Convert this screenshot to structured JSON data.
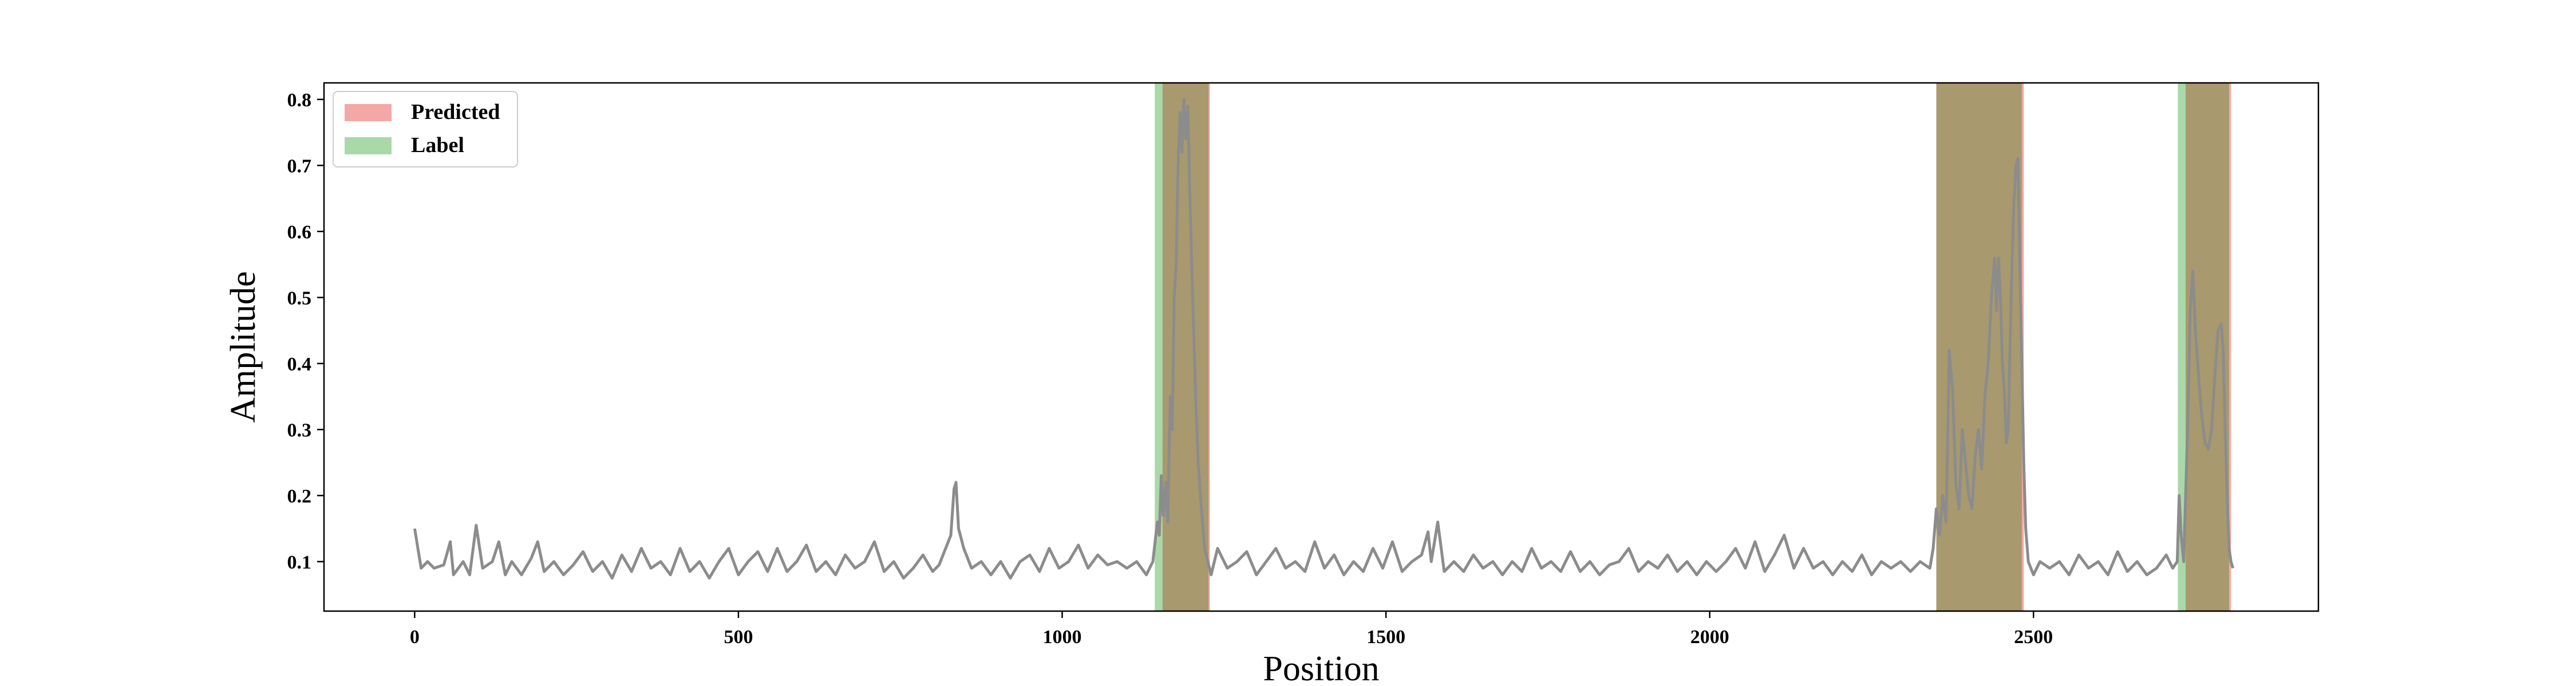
{
  "chart_data": {
    "type": "line",
    "title": "",
    "xlabel": "Position",
    "ylabel": "Amplitude",
    "xlim": [
      -140,
      2940
    ],
    "ylim": [
      0.025,
      0.825
    ],
    "x_ticks": [
      0,
      500,
      1000,
      1500,
      2000,
      2500
    ],
    "y_ticks": [
      0.1,
      0.2,
      0.3,
      0.4,
      0.5,
      0.6,
      0.7,
      0.8
    ],
    "grid": false,
    "legend": {
      "placement": "top-left",
      "entries": [
        {
          "label": "Predicted",
          "color": "#f4a7a7"
        },
        {
          "label": "Label",
          "color": "#a9d8a9"
        }
      ]
    },
    "series": [
      {
        "color": "#8c8c8c",
        "points": [
          [
            0,
            0.15
          ],
          [
            5,
            0.12
          ],
          [
            10,
            0.09
          ],
          [
            20,
            0.1
          ],
          [
            30,
            0.09
          ],
          [
            45,
            0.095
          ],
          [
            55,
            0.13
          ],
          [
            60,
            0.08
          ],
          [
            75,
            0.1
          ],
          [
            85,
            0.08
          ],
          [
            95,
            0.155
          ],
          [
            105,
            0.09
          ],
          [
            120,
            0.1
          ],
          [
            130,
            0.13
          ],
          [
            140,
            0.08
          ],
          [
            150,
            0.1
          ],
          [
            165,
            0.08
          ],
          [
            180,
            0.105
          ],
          [
            190,
            0.13
          ],
          [
            200,
            0.085
          ],
          [
            215,
            0.1
          ],
          [
            230,
            0.08
          ],
          [
            245,
            0.095
          ],
          [
            260,
            0.115
          ],
          [
            275,
            0.085
          ],
          [
            290,
            0.1
          ],
          [
            305,
            0.075
          ],
          [
            320,
            0.11
          ],
          [
            335,
            0.085
          ],
          [
            350,
            0.12
          ],
          [
            365,
            0.09
          ],
          [
            380,
            0.1
          ],
          [
            395,
            0.08
          ],
          [
            410,
            0.12
          ],
          [
            425,
            0.085
          ],
          [
            440,
            0.1
          ],
          [
            455,
            0.075
          ],
          [
            470,
            0.1
          ],
          [
            485,
            0.12
          ],
          [
            500,
            0.08
          ],
          [
            515,
            0.1
          ],
          [
            530,
            0.115
          ],
          [
            545,
            0.085
          ],
          [
            560,
            0.12
          ],
          [
            575,
            0.085
          ],
          [
            590,
            0.1
          ],
          [
            605,
            0.125
          ],
          [
            620,
            0.085
          ],
          [
            635,
            0.1
          ],
          [
            650,
            0.08
          ],
          [
            665,
            0.11
          ],
          [
            680,
            0.09
          ],
          [
            695,
            0.1
          ],
          [
            710,
            0.13
          ],
          [
            725,
            0.085
          ],
          [
            740,
            0.1
          ],
          [
            755,
            0.075
          ],
          [
            770,
            0.09
          ],
          [
            785,
            0.11
          ],
          [
            800,
            0.085
          ],
          [
            810,
            0.095
          ],
          [
            820,
            0.12
          ],
          [
            828,
            0.14
          ],
          [
            833,
            0.21
          ],
          [
            836,
            0.22
          ],
          [
            840,
            0.15
          ],
          [
            848,
            0.12
          ],
          [
            860,
            0.09
          ],
          [
            875,
            0.1
          ],
          [
            890,
            0.08
          ],
          [
            905,
            0.1
          ],
          [
            920,
            0.075
          ],
          [
            935,
            0.1
          ],
          [
            950,
            0.11
          ],
          [
            965,
            0.085
          ],
          [
            980,
            0.12
          ],
          [
            995,
            0.09
          ],
          [
            1010,
            0.1
          ],
          [
            1025,
            0.125
          ],
          [
            1040,
            0.09
          ],
          [
            1055,
            0.11
          ],
          [
            1070,
            0.095
          ],
          [
            1085,
            0.1
          ],
          [
            1100,
            0.09
          ],
          [
            1115,
            0.1
          ],
          [
            1130,
            0.08
          ],
          [
            1140,
            0.1
          ],
          [
            1147,
            0.16
          ],
          [
            1150,
            0.14
          ],
          [
            1153,
            0.23
          ],
          [
            1156,
            0.17
          ],
          [
            1160,
            0.22
          ],
          [
            1163,
            0.16
          ],
          [
            1167,
            0.35
          ],
          [
            1170,
            0.3
          ],
          [
            1173,
            0.5
          ],
          [
            1176,
            0.55
          ],
          [
            1179,
            0.7
          ],
          [
            1182,
            0.78
          ],
          [
            1185,
            0.72
          ],
          [
            1188,
            0.8
          ],
          [
            1191,
            0.74
          ],
          [
            1194,
            0.79
          ],
          [
            1197,
            0.66
          ],
          [
            1200,
            0.55
          ],
          [
            1203,
            0.45
          ],
          [
            1206,
            0.35
          ],
          [
            1210,
            0.25
          ],
          [
            1215,
            0.18
          ],
          [
            1220,
            0.12
          ],
          [
            1225,
            0.1
          ],
          [
            1230,
            0.08
          ],
          [
            1240,
            0.12
          ],
          [
            1255,
            0.09
          ],
          [
            1270,
            0.1
          ],
          [
            1285,
            0.115
          ],
          [
            1300,
            0.08
          ],
          [
            1315,
            0.1
          ],
          [
            1330,
            0.12
          ],
          [
            1345,
            0.09
          ],
          [
            1360,
            0.1
          ],
          [
            1375,
            0.085
          ],
          [
            1390,
            0.13
          ],
          [
            1405,
            0.09
          ],
          [
            1420,
            0.11
          ],
          [
            1435,
            0.08
          ],
          [
            1450,
            0.1
          ],
          [
            1465,
            0.085
          ],
          [
            1480,
            0.12
          ],
          [
            1495,
            0.09
          ],
          [
            1510,
            0.13
          ],
          [
            1525,
            0.085
          ],
          [
            1540,
            0.1
          ],
          [
            1555,
            0.11
          ],
          [
            1565,
            0.145
          ],
          [
            1570,
            0.1
          ],
          [
            1580,
            0.16
          ],
          [
            1590,
            0.085
          ],
          [
            1605,
            0.1
          ],
          [
            1620,
            0.085
          ],
          [
            1635,
            0.11
          ],
          [
            1650,
            0.09
          ],
          [
            1665,
            0.1
          ],
          [
            1680,
            0.08
          ],
          [
            1695,
            0.1
          ],
          [
            1710,
            0.085
          ],
          [
            1725,
            0.12
          ],
          [
            1740,
            0.09
          ],
          [
            1755,
            0.1
          ],
          [
            1770,
            0.085
          ],
          [
            1785,
            0.115
          ],
          [
            1800,
            0.085
          ],
          [
            1815,
            0.1
          ],
          [
            1830,
            0.08
          ],
          [
            1845,
            0.095
          ],
          [
            1860,
            0.1
          ],
          [
            1875,
            0.12
          ],
          [
            1890,
            0.085
          ],
          [
            1905,
            0.1
          ],
          [
            1920,
            0.09
          ],
          [
            1935,
            0.11
          ],
          [
            1950,
            0.085
          ],
          [
            1965,
            0.1
          ],
          [
            1980,
            0.08
          ],
          [
            1995,
            0.1
          ],
          [
            2010,
            0.085
          ],
          [
            2025,
            0.1
          ],
          [
            2040,
            0.12
          ],
          [
            2055,
            0.09
          ],
          [
            2070,
            0.13
          ],
          [
            2085,
            0.085
          ],
          [
            2100,
            0.11
          ],
          [
            2115,
            0.14
          ],
          [
            2130,
            0.09
          ],
          [
            2145,
            0.12
          ],
          [
            2160,
            0.09
          ],
          [
            2175,
            0.1
          ],
          [
            2190,
            0.08
          ],
          [
            2205,
            0.1
          ],
          [
            2220,
            0.085
          ],
          [
            2235,
            0.11
          ],
          [
            2250,
            0.08
          ],
          [
            2265,
            0.1
          ],
          [
            2280,
            0.09
          ],
          [
            2295,
            0.1
          ],
          [
            2310,
            0.085
          ],
          [
            2325,
            0.1
          ],
          [
            2340,
            0.09
          ],
          [
            2345,
            0.12
          ],
          [
            2350,
            0.18
          ],
          [
            2355,
            0.14
          ],
          [
            2360,
            0.2
          ],
          [
            2365,
            0.16
          ],
          [
            2370,
            0.42
          ],
          [
            2375,
            0.36
          ],
          [
            2380,
            0.22
          ],
          [
            2385,
            0.18
          ],
          [
            2390,
            0.3
          ],
          [
            2395,
            0.25
          ],
          [
            2400,
            0.2
          ],
          [
            2405,
            0.18
          ],
          [
            2410,
            0.26
          ],
          [
            2415,
            0.3
          ],
          [
            2420,
            0.24
          ],
          [
            2425,
            0.35
          ],
          [
            2430,
            0.4
          ],
          [
            2435,
            0.5
          ],
          [
            2440,
            0.56
          ],
          [
            2443,
            0.48
          ],
          [
            2446,
            0.56
          ],
          [
            2449,
            0.5
          ],
          [
            2452,
            0.4
          ],
          [
            2455,
            0.36
          ],
          [
            2458,
            0.28
          ],
          [
            2461,
            0.3
          ],
          [
            2464,
            0.44
          ],
          [
            2467,
            0.56
          ],
          [
            2470,
            0.65
          ],
          [
            2473,
            0.7
          ],
          [
            2476,
            0.71
          ],
          [
            2479,
            0.55
          ],
          [
            2482,
            0.4
          ],
          [
            2485,
            0.25
          ],
          [
            2488,
            0.15
          ],
          [
            2492,
            0.1
          ],
          [
            2500,
            0.08
          ],
          [
            2510,
            0.1
          ],
          [
            2525,
            0.09
          ],
          [
            2540,
            0.1
          ],
          [
            2555,
            0.08
          ],
          [
            2570,
            0.11
          ],
          [
            2585,
            0.09
          ],
          [
            2600,
            0.1
          ],
          [
            2615,
            0.08
          ],
          [
            2630,
            0.115
          ],
          [
            2645,
            0.085
          ],
          [
            2660,
            0.1
          ],
          [
            2675,
            0.08
          ],
          [
            2690,
            0.09
          ],
          [
            2705,
            0.11
          ],
          [
            2715,
            0.09
          ],
          [
            2722,
            0.1
          ],
          [
            2725,
            0.2
          ],
          [
            2728,
            0.14
          ],
          [
            2732,
            0.1
          ],
          [
            2738,
            0.3
          ],
          [
            2742,
            0.48
          ],
          [
            2746,
            0.54
          ],
          [
            2750,
            0.45
          ],
          [
            2755,
            0.38
          ],
          [
            2760,
            0.32
          ],
          [
            2765,
            0.28
          ],
          [
            2770,
            0.27
          ],
          [
            2775,
            0.3
          ],
          [
            2780,
            0.38
          ],
          [
            2785,
            0.45
          ],
          [
            2790,
            0.46
          ],
          [
            2793,
            0.42
          ],
          [
            2796,
            0.3
          ],
          [
            2799,
            0.2
          ],
          [
            2802,
            0.12
          ],
          [
            2805,
            0.1
          ],
          [
            2808,
            0.09
          ]
        ]
      }
    ],
    "regions": {
      "predicted": [
        [
          1155,
          1228
        ],
        [
          2350,
          2485
        ],
        [
          2735,
          2805
        ]
      ],
      "label": [
        [
          1143,
          1226
        ],
        [
          2350,
          2482
        ],
        [
          2723,
          2802
        ]
      ]
    }
  },
  "colors": {
    "predicted_fill": "#f4a7a7",
    "label_fill": "#a9d8a9",
    "overlap_fill": "#a89a6e",
    "line": "#8c8c8c"
  }
}
